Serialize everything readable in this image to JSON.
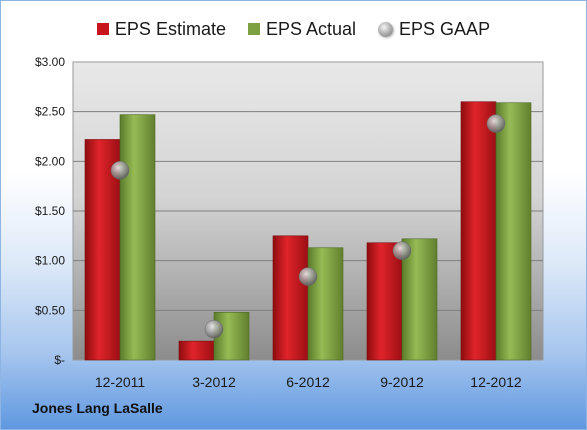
{
  "chart_data": {
    "type": "bar",
    "categories": [
      "12-2011",
      "3-2012",
      "6-2012",
      "9-2012",
      "12-2012"
    ],
    "series": [
      {
        "name": "EPS Estimate",
        "values": [
          2.22,
          0.19,
          1.25,
          1.18,
          2.6
        ],
        "color": "#c8141b",
        "kind": "bar"
      },
      {
        "name": "EPS Actual",
        "values": [
          2.47,
          0.48,
          1.13,
          1.22,
          2.59
        ],
        "color": "#7da140",
        "kind": "bar"
      },
      {
        "name": "EPS GAAP",
        "values": [
          1.91,
          0.31,
          0.84,
          1.1,
          2.38
        ],
        "color": "#9a9a9a",
        "kind": "marker"
      }
    ],
    "ylim": [
      0,
      3.0
    ],
    "yticks": [
      0,
      0.5,
      1.0,
      1.5,
      2.0,
      2.5,
      3.0
    ],
    "ytick_labels": [
      "$-",
      "$0.50",
      "$1.00",
      "$1.50",
      "$2.00",
      "$2.50",
      "$3.00"
    ],
    "grid": true,
    "legend_position": "top"
  },
  "legend": {
    "estimate": "EPS Estimate",
    "actual": "EPS Actual",
    "gaap": "EPS GAAP"
  },
  "company": "Jones Lang LaSalle"
}
